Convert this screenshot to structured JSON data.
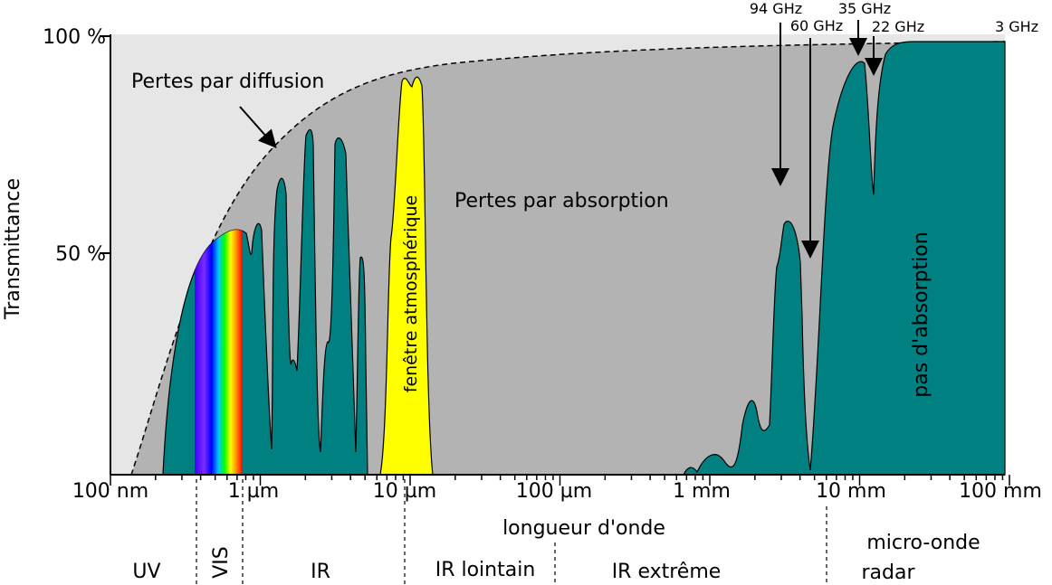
{
  "axes": {
    "y_label": "Transmittance",
    "y_ticks": [
      "100 %",
      "50 %"
    ],
    "x_label": "longueur d'onde",
    "x_ticks": [
      "100 nm",
      "1 µm",
      "10 µm",
      "100 µm",
      "1 mm",
      "10 mm",
      "100 mm"
    ]
  },
  "annotations": {
    "scattering": "Pertes par diffusion",
    "absorption": "Pertes par absorption",
    "window": "fenêtre atmosphérique",
    "no_absorption": "pas d'absorption",
    "frequencies": [
      "94 GHz",
      "60 GHz",
      "35 GHz",
      "22 GHz",
      "3 GHz"
    ]
  },
  "regions": [
    "UV",
    "VIS",
    "IR",
    "IR lointain",
    "IR extrême",
    "micro-onde",
    "radar"
  ]
}
